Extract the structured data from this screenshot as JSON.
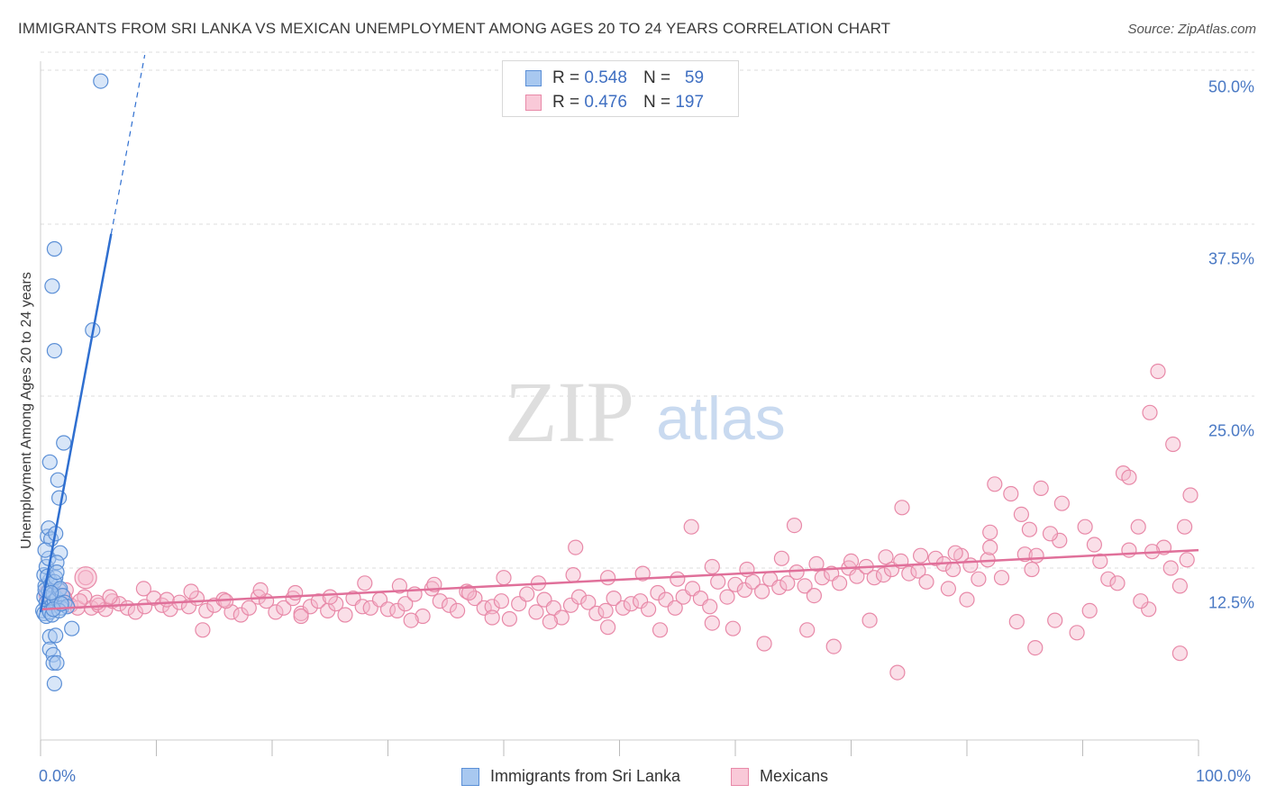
{
  "title": "IMMIGRANTS FROM SRI LANKA VS MEXICAN UNEMPLOYMENT AMONG AGES 20 TO 24 YEARS CORRELATION CHART",
  "source": "Source: ZipAtlas.com",
  "watermark": {
    "zip": "ZIP",
    "atlas": "atlas"
  },
  "legend": {
    "series1": {
      "r_label": "R =",
      "r_value": "0.548",
      "n_label": "N =",
      "n_value": "59"
    },
    "series2": {
      "r_label": "R =",
      "r_value": "0.476",
      "n_label": "N =",
      "n_value": "197"
    }
  },
  "bottom_legend": {
    "series1": "Immigrants from Sri Lanka",
    "series2": "Mexicans"
  },
  "colors": {
    "blue_fill": "#a8c8f0",
    "blue_stroke": "#5b8fd6",
    "blue_line": "#2f6fd0",
    "pink_fill": "#f5b8cc",
    "pink_stroke": "#e889a8",
    "pink_line": "#e0709a",
    "tick_label": "#4a79c4",
    "grid": "#dddddd"
  },
  "chart_data": {
    "type": "scatter",
    "xlabel": "",
    "ylabel": "Unemployment Among Ages 20 to 24 years",
    "xlim": [
      0,
      100
    ],
    "ylim": [
      0,
      52
    ],
    "y_ticks": [
      12.5,
      25.0,
      37.5,
      50.0
    ],
    "y_tick_labels": [
      "12.5%",
      "25.0%",
      "37.5%",
      "50.0%"
    ],
    "x_tick_labels": [
      "0.0%",
      "100.0%"
    ],
    "series": [
      {
        "name": "Immigrants from Sri Lanka",
        "R": 0.548,
        "N": 59,
        "trendline": {
          "x0": 0.0,
          "y0": 9.3,
          "x1": 6.1,
          "y1": 36.8,
          "dash_to_x": 9.0,
          "dash_to_y": 49.8
        },
        "points": [
          [
            0.3,
            10.4
          ],
          [
            0.4,
            11.2
          ],
          [
            0.5,
            10.0
          ],
          [
            0.6,
            9.6
          ],
          [
            0.7,
            10.8
          ],
          [
            0.8,
            11.6
          ],
          [
            0.9,
            10.2
          ],
          [
            1.0,
            9.8
          ],
          [
            0.3,
            12.0
          ],
          [
            0.5,
            12.6
          ],
          [
            0.7,
            13.2
          ],
          [
            0.4,
            10.9
          ],
          [
            0.6,
            11.9
          ],
          [
            0.9,
            11.3
          ],
          [
            1.1,
            10.6
          ],
          [
            1.2,
            10.1
          ],
          [
            0.2,
            9.4
          ],
          [
            0.3,
            9.2
          ],
          [
            0.5,
            9.0
          ],
          [
            0.8,
            9.3
          ],
          [
            1.0,
            9.1
          ],
          [
            1.4,
            10.3
          ],
          [
            1.6,
            10.9
          ],
          [
            1.3,
            11.8
          ],
          [
            0.6,
            14.8
          ],
          [
            0.7,
            15.4
          ],
          [
            0.9,
            14.6
          ],
          [
            1.3,
            15.0
          ],
          [
            1.7,
            13.6
          ],
          [
            1.4,
            12.9
          ],
          [
            1.2,
            11.5
          ],
          [
            0.4,
            13.8
          ],
          [
            1.4,
            12.2
          ],
          [
            1.7,
            11.0
          ],
          [
            1.9,
            10.5
          ],
          [
            2.1,
            10.0
          ],
          [
            1.8,
            9.6
          ],
          [
            2.3,
            9.7
          ],
          [
            1.6,
            9.4
          ],
          [
            1.1,
            9.5
          ],
          [
            0.8,
            7.5
          ],
          [
            1.3,
            7.6
          ],
          [
            0.8,
            6.6
          ],
          [
            1.1,
            6.2
          ],
          [
            1.1,
            5.6
          ],
          [
            1.4,
            5.6
          ],
          [
            1.2,
            4.1
          ],
          [
            2.7,
            8.1
          ],
          [
            1.6,
            17.6
          ],
          [
            1.5,
            18.9
          ],
          [
            2.0,
            21.6
          ],
          [
            0.8,
            20.2
          ],
          [
            1.2,
            28.3
          ],
          [
            1.0,
            33.0
          ],
          [
            1.2,
            35.7
          ],
          [
            4.5,
            29.8
          ],
          [
            5.2,
            47.9
          ],
          [
            1.8,
            9.9
          ],
          [
            0.9,
            10.7
          ]
        ]
      },
      {
        "name": "Mexicans",
        "R": 0.476,
        "N": 197,
        "trendline": {
          "x0": 0.0,
          "y0": 9.5,
          "x1": 100.0,
          "y1": 13.8
        },
        "points": [
          [
            0.5,
            10.6
          ],
          [
            1.0,
            10.4
          ],
          [
            1.5,
            10.2
          ],
          [
            2.0,
            10.3
          ],
          [
            2.6,
            9.8
          ],
          [
            3.2,
            9.6
          ],
          [
            3.8,
            10.4
          ],
          [
            4.4,
            9.6
          ],
          [
            5.0,
            9.8
          ],
          [
            5.6,
            9.5
          ],
          [
            6.2,
            10.1
          ],
          [
            6.8,
            9.9
          ],
          [
            7.5,
            9.6
          ],
          [
            8.2,
            9.3
          ],
          [
            9.0,
            9.7
          ],
          [
            9.8,
            10.3
          ],
          [
            10.5,
            9.8
          ],
          [
            11.2,
            9.5
          ],
          [
            12.0,
            10.0
          ],
          [
            12.8,
            9.7
          ],
          [
            13.5,
            10.3
          ],
          [
            14.3,
            9.4
          ],
          [
            15.0,
            9.8
          ],
          [
            15.8,
            10.2
          ],
          [
            16.5,
            9.3
          ],
          [
            17.3,
            9.1
          ],
          [
            18.0,
            9.6
          ],
          [
            18.8,
            10.4
          ],
          [
            19.5,
            10.1
          ],
          [
            20.3,
            9.3
          ],
          [
            21.0,
            9.6
          ],
          [
            21.8,
            10.3
          ],
          [
            22.5,
            9.2
          ],
          [
            23.3,
            9.7
          ],
          [
            24.0,
            10.1
          ],
          [
            24.8,
            9.4
          ],
          [
            25.5,
            9.9
          ],
          [
            26.3,
            9.1
          ],
          [
            27.0,
            10.3
          ],
          [
            27.8,
            9.7
          ],
          [
            28.5,
            9.6
          ],
          [
            29.3,
            10.2
          ],
          [
            30.0,
            9.5
          ],
          [
            30.8,
            9.4
          ],
          [
            31.5,
            9.9
          ],
          [
            32.3,
            10.6
          ],
          [
            33.0,
            9.0
          ],
          [
            33.8,
            11.0
          ],
          [
            34.5,
            10.1
          ],
          [
            35.3,
            9.8
          ],
          [
            36.0,
            9.4
          ],
          [
            36.8,
            10.8
          ],
          [
            37.5,
            10.3
          ],
          [
            38.3,
            9.6
          ],
          [
            39.0,
            9.7
          ],
          [
            39.8,
            10.1
          ],
          [
            40.5,
            8.8
          ],
          [
            41.3,
            9.9
          ],
          [
            42.0,
            10.6
          ],
          [
            42.8,
            9.3
          ],
          [
            43.5,
            10.2
          ],
          [
            44.3,
            9.6
          ],
          [
            45.0,
            8.9
          ],
          [
            45.8,
            9.8
          ],
          [
            46.5,
            10.4
          ],
          [
            47.3,
            10.0
          ],
          [
            48.0,
            9.2
          ],
          [
            48.8,
            9.4
          ],
          [
            49.5,
            10.3
          ],
          [
            50.3,
            9.6
          ],
          [
            51.0,
            9.9
          ],
          [
            51.8,
            10.1
          ],
          [
            52.5,
            9.5
          ],
          [
            53.3,
            10.7
          ],
          [
            54.0,
            10.2
          ],
          [
            54.8,
            9.6
          ],
          [
            55.5,
            10.4
          ],
          [
            56.3,
            11.0
          ],
          [
            57.0,
            10.3
          ],
          [
            57.8,
            9.7
          ],
          [
            58.5,
            11.5
          ],
          [
            59.3,
            10.4
          ],
          [
            60.0,
            11.3
          ],
          [
            60.8,
            10.9
          ],
          [
            61.5,
            11.5
          ],
          [
            62.3,
            10.8
          ],
          [
            63.0,
            11.7
          ],
          [
            63.8,
            11.1
          ],
          [
            64.5,
            11.4
          ],
          [
            65.3,
            12.2
          ],
          [
            66.0,
            11.2
          ],
          [
            66.8,
            10.5
          ],
          [
            67.5,
            11.8
          ],
          [
            68.3,
            12.1
          ],
          [
            69.0,
            11.4
          ],
          [
            69.8,
            12.5
          ],
          [
            70.5,
            11.9
          ],
          [
            71.3,
            12.6
          ],
          [
            72.0,
            11.8
          ],
          [
            72.8,
            12.0
          ],
          [
            73.5,
            12.4
          ],
          [
            74.3,
            13.0
          ],
          [
            75.0,
            12.1
          ],
          [
            75.8,
            12.3
          ],
          [
            76.5,
            11.5
          ],
          [
            77.3,
            13.2
          ],
          [
            78.0,
            12.8
          ],
          [
            78.8,
            12.4
          ],
          [
            79.5,
            13.4
          ],
          [
            80.3,
            12.7
          ],
          [
            81.0,
            11.7
          ],
          [
            81.8,
            13.1
          ],
          [
            1.2,
            10.7
          ],
          [
            2.2,
            10.9
          ],
          [
            3.4,
            10.1
          ],
          [
            4.9,
            10.0
          ],
          [
            6.0,
            10.4
          ],
          [
            8.9,
            11.0
          ],
          [
            10.9,
            10.2
          ],
          [
            13.0,
            10.8
          ],
          [
            16.0,
            10.1
          ],
          [
            19.0,
            10.9
          ],
          [
            22.0,
            10.7
          ],
          [
            25.0,
            10.4
          ],
          [
            28.0,
            11.4
          ],
          [
            31.0,
            11.2
          ],
          [
            34.0,
            11.3
          ],
          [
            37.0,
            10.7
          ],
          [
            40.0,
            11.8
          ],
          [
            43.0,
            11.4
          ],
          [
            46.0,
            12.0
          ],
          [
            49.0,
            11.8
          ],
          [
            52.0,
            12.1
          ],
          [
            55.0,
            11.7
          ],
          [
            58.0,
            12.6
          ],
          [
            61.0,
            12.4
          ],
          [
            64.0,
            13.2
          ],
          [
            67.0,
            12.8
          ],
          [
            70.0,
            13.0
          ],
          [
            73.0,
            13.3
          ],
          [
            76.0,
            13.4
          ],
          [
            79.0,
            13.6
          ],
          [
            82.0,
            14.0
          ],
          [
            85.0,
            13.5
          ],
          [
            88.0,
            14.5
          ],
          [
            91.0,
            14.2
          ],
          [
            94.0,
            13.8
          ],
          [
            97.0,
            14.0
          ],
          [
            99.0,
            13.1
          ],
          [
            3.9,
            11.8
          ],
          [
            14.0,
            8.0
          ],
          [
            22.5,
            9.0
          ],
          [
            32.0,
            8.7
          ],
          [
            39.0,
            8.9
          ],
          [
            44.0,
            8.6
          ],
          [
            49.0,
            8.2
          ],
          [
            53.5,
            8.0
          ],
          [
            58.0,
            8.5
          ],
          [
            59.8,
            8.1
          ],
          [
            62.5,
            7.0
          ],
          [
            66.2,
            8.0
          ],
          [
            68.5,
            6.8
          ],
          [
            71.6,
            8.7
          ],
          [
            74.0,
            4.9
          ],
          [
            78.4,
            11.0
          ],
          [
            80.0,
            10.2
          ],
          [
            83.0,
            11.8
          ],
          [
            84.3,
            8.6
          ],
          [
            85.6,
            12.4
          ],
          [
            86.0,
            13.4
          ],
          [
            84.7,
            16.4
          ],
          [
            86.4,
            18.3
          ],
          [
            83.8,
            17.9
          ],
          [
            82.0,
            15.1
          ],
          [
            82.4,
            18.6
          ],
          [
            85.4,
            15.3
          ],
          [
            87.2,
            15.0
          ],
          [
            88.2,
            17.2
          ],
          [
            90.2,
            15.5
          ],
          [
            91.5,
            13.0
          ],
          [
            92.2,
            11.7
          ],
          [
            93.5,
            19.4
          ],
          [
            94.0,
            19.1
          ],
          [
            94.8,
            15.5
          ],
          [
            96.0,
            13.7
          ],
          [
            97.6,
            12.5
          ],
          [
            98.4,
            11.2
          ],
          [
            95.7,
            9.5
          ],
          [
            95.0,
            10.1
          ],
          [
            93.0,
            11.4
          ],
          [
            90.6,
            9.4
          ],
          [
            89.5,
            7.8
          ],
          [
            87.6,
            8.7
          ],
          [
            85.9,
            6.7
          ],
          [
            98.4,
            6.3
          ],
          [
            97.8,
            21.5
          ],
          [
            95.8,
            23.8
          ],
          [
            96.5,
            26.8
          ],
          [
            99.3,
            17.8
          ],
          [
            98.8,
            15.5
          ],
          [
            74.4,
            16.9
          ],
          [
            65.1,
            15.6
          ],
          [
            56.2,
            15.5
          ],
          [
            46.2,
            14.0
          ]
        ]
      }
    ]
  }
}
